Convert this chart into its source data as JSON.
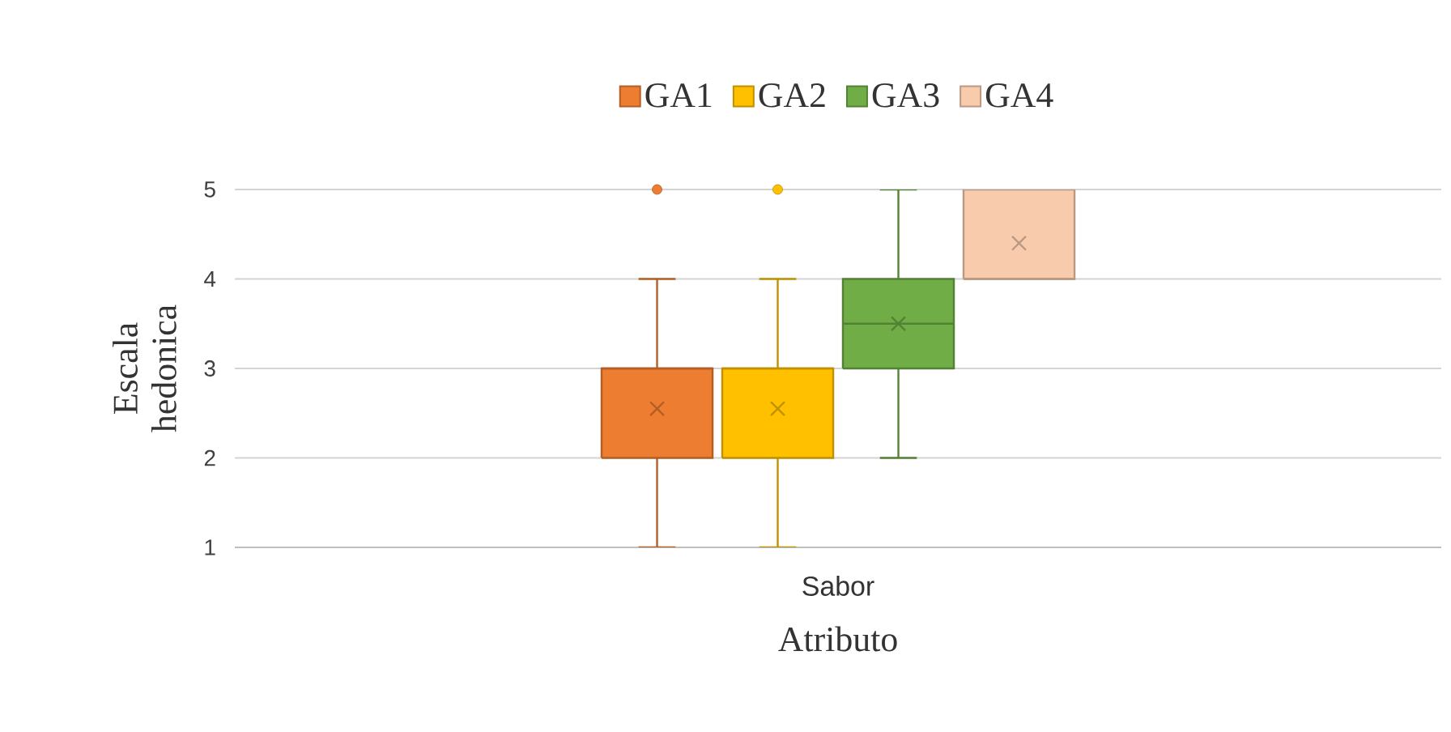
{
  "chart_data": {
    "type": "box",
    "xlabel": "Atributo",
    "ylabel": "Escala hedonica",
    "categories": [
      "Sabor"
    ],
    "series": [
      {
        "name": "GA1",
        "color": "#ed7d31",
        "boxes": [
          {
            "low": 1,
            "q1": 2,
            "median": 3,
            "q3": 3,
            "high": 4,
            "mean": 2.55,
            "outliers": [
              5
            ]
          }
        ]
      },
      {
        "name": "GA2",
        "color": "#ffc000",
        "boxes": [
          {
            "low": 1,
            "q1": 2,
            "median": 3,
            "q3": 3,
            "high": 4,
            "mean": 2.55,
            "outliers": [
              5
            ]
          }
        ]
      },
      {
        "name": "GA3",
        "color": "#70ad47",
        "boxes": [
          {
            "low": 2,
            "q1": 3,
            "median": 3.5,
            "q3": 4,
            "high": 5,
            "mean": 3.5
          }
        ]
      },
      {
        "name": "GA4",
        "color": "#f8cbad",
        "boxes": [
          {
            "low": 4,
            "q1": 4,
            "median": 4,
            "q3": 5,
            "high": 5,
            "mean": 4.4
          }
        ]
      }
    ],
    "ylim": [
      1,
      5
    ],
    "yticks": [
      1,
      2,
      3,
      4,
      5
    ],
    "grid": "y",
    "legend": "top"
  }
}
